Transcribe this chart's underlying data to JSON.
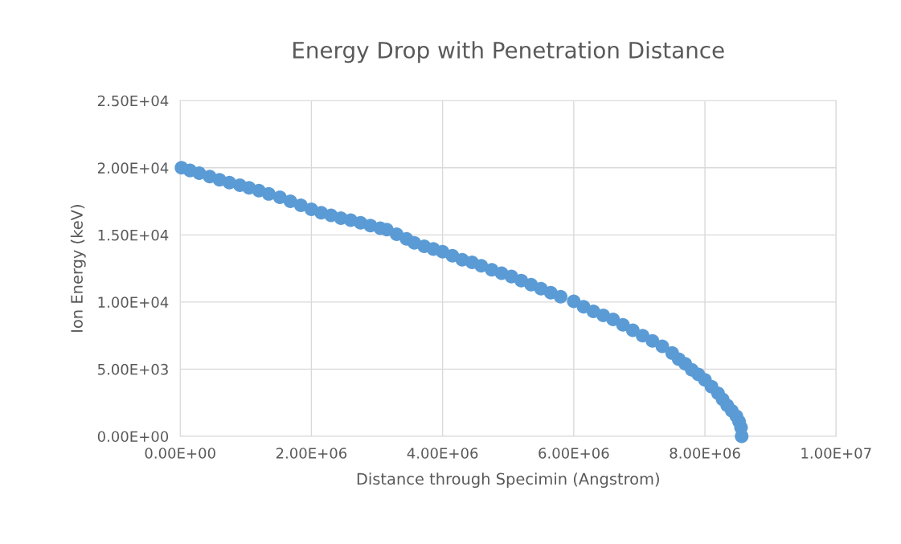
{
  "chart_data": {
    "type": "scatter",
    "title": "Energy Drop with Penetration Distance",
    "xlabel": "Distance through Specimin (Angstrom)",
    "ylabel": "Ion Energy (keV)",
    "x": [
      20000,
      150000,
      290000,
      450000,
      600000,
      750000,
      910000,
      1050000,
      1200000,
      1350000,
      1520000,
      1680000,
      1840000,
      2000000,
      2150000,
      2300000,
      2450000,
      2600000,
      2750000,
      2900000,
      3050000,
      3150000,
      3300000,
      3450000,
      3570000,
      3720000,
      3860000,
      4000000,
      4150000,
      4300000,
      4450000,
      4590000,
      4750000,
      4900000,
      5050000,
      5200000,
      5350000,
      5500000,
      5650000,
      5800000,
      6000000,
      6150000,
      6300000,
      6450000,
      6600000,
      6750000,
      6900000,
      7050000,
      7200000,
      7350000,
      7500000,
      7600000,
      7700000,
      7800000,
      7900000,
      8000000,
      8100000,
      8200000,
      8270000,
      8340000,
      8410000,
      8480000,
      8520000,
      8550000,
      8560000
    ],
    "series": [
      {
        "color": "#5b9bd5",
        "values": [
          20000,
          19800,
          19600,
          19350,
          19100,
          18900,
          18700,
          18500,
          18300,
          18050,
          17800,
          17500,
          17200,
          16900,
          16650,
          16450,
          16250,
          16100,
          15900,
          15700,
          15500,
          15400,
          15050,
          14700,
          14400,
          14150,
          13950,
          13750,
          13450,
          13150,
          12950,
          12700,
          12400,
          12150,
          11900,
          11600,
          11300,
          11000,
          10700,
          10400,
          10050,
          9650,
          9300,
          9000,
          8700,
          8300,
          7900,
          7500,
          7100,
          6700,
          6200,
          5750,
          5400,
          4950,
          4600,
          4200,
          3700,
          3200,
          2750,
          2300,
          1900,
          1500,
          1100,
          650,
          0
        ]
      }
    ],
    "xlim": [
      0,
      10000000
    ],
    "ylim": [
      0,
      25000
    ],
    "xticks": [
      {
        "value": 0,
        "label": "0.00E+00"
      },
      {
        "value": 2000000,
        "label": "2.00E+06"
      },
      {
        "value": 4000000,
        "label": "4.00E+06"
      },
      {
        "value": 6000000,
        "label": "6.00E+06"
      },
      {
        "value": 8000000,
        "label": "8.00E+06"
      },
      {
        "value": 10000000,
        "label": "1.00E+07"
      }
    ],
    "yticks": [
      {
        "value": 0,
        "label": "0.00E+00"
      },
      {
        "value": 5000,
        "label": "5.00E+03"
      },
      {
        "value": 10000,
        "label": "1.00E+04"
      },
      {
        "value": 15000,
        "label": "1.50E+04"
      },
      {
        "value": 20000,
        "label": "2.00E+04"
      },
      {
        "value": 25000,
        "label": "2.50E+04"
      }
    ],
    "grid": true,
    "marker": "circle"
  }
}
